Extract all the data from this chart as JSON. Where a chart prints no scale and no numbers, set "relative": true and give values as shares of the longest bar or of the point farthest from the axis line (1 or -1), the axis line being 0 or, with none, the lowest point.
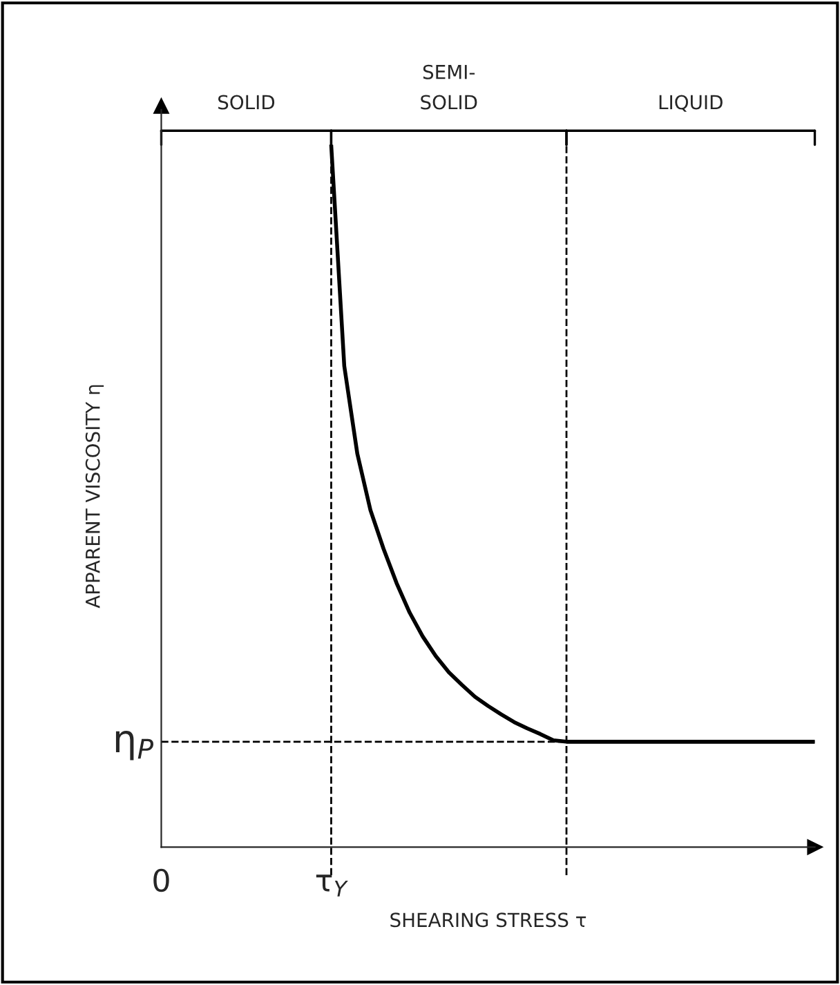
{
  "chart_data": {
    "type": "line",
    "relative": true,
    "xlabel": "SHEARING STRESS τ",
    "ylabel": "APPARENT VISCOSITY η",
    "categories": [
      null,
      null,
      null,
      null,
      null,
      null,
      null,
      null,
      null,
      null,
      null,
      null,
      null,
      null,
      null,
      null,
      null,
      null,
      null,
      null,
      null,
      null,
      null,
      null,
      null,
      null,
      null,
      null,
      null,
      null,
      null,
      null,
      null,
      null,
      null,
      null,
      null,
      null,
      null,
      null,
      null,
      null,
      null,
      null,
      null,
      null,
      null,
      null,
      null,
      null,
      null
    ],
    "series": [
      {
        "color": "#000000",
        "values": [
          null,
          null,
          null,
          null,
          null,
          null,
          null,
          null,
          null,
          null,
          null,
          null,
          null,
          1.0,
          0.685,
          0.56,
          0.48,
          0.425,
          0.376,
          0.334,
          0.3,
          0.272,
          0.249,
          0.231,
          0.214,
          0.201,
          0.189,
          0.178,
          0.169,
          0.161,
          0.152,
          0.15,
          0.15,
          0.15,
          0.15,
          0.15,
          0.15,
          0.15,
          0.15,
          0.15,
          0.15,
          0.15,
          0.15,
          0.15,
          0.15,
          0.15,
          0.15,
          0.15,
          0.15,
          0.15,
          0.15
        ]
      }
    ],
    "ref_lines": [
      {
        "axis": "y",
        "value": 0.15,
        "label": "η$_{P}$",
        "line_style": "dashed",
        "color": "#000000"
      }
    ],
    "annotations": [
      "0",
      "τ$_{Y}$",
      "SOLID",
      "SEMI-\nSOLID",
      "LIQUID"
    ],
    "legend": false,
    "marker": "none",
    "line_style": "solid"
  }
}
